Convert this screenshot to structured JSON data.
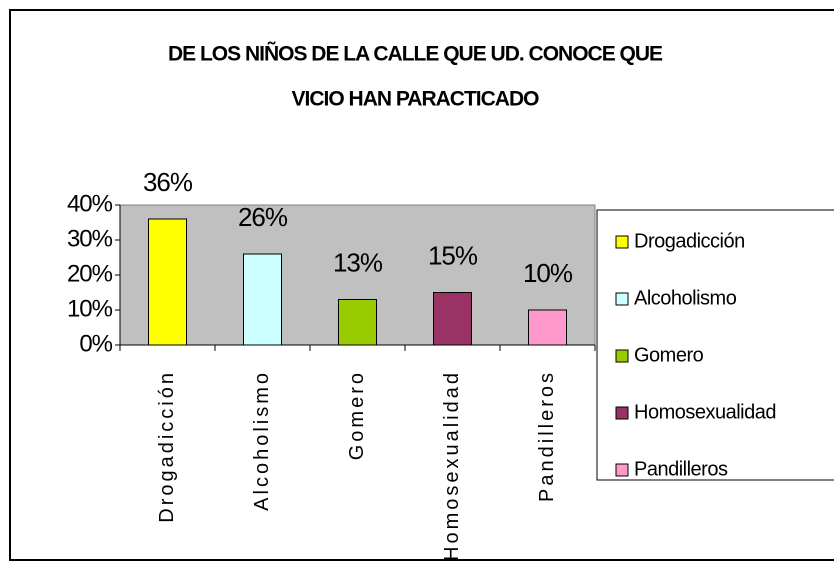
{
  "chart_data": {
    "type": "bar",
    "title": [
      "DE LOS NIÑOS DE LA CALLE QUE UD. CONOCE QUE",
      "VICIO HAN PARACTICADO"
    ],
    "categories": [
      "Drogadicción",
      "Alcoholismo",
      "Gomero",
      "Homosexualidad",
      "Pandilleros"
    ],
    "values": [
      36,
      26,
      13,
      15,
      10
    ],
    "value_labels": [
      "36%",
      "26%",
      "13%",
      "15%",
      "10%"
    ],
    "colors": [
      "#ffff00",
      "#ccffff",
      "#99cc00",
      "#993366",
      "#ff99cc"
    ],
    "ylim": [
      0,
      40
    ],
    "yticks": [
      {
        "value": 0,
        "label": "0%"
      },
      {
        "value": 10,
        "label": "10%"
      },
      {
        "value": 20,
        "label": "20%"
      },
      {
        "value": 30,
        "label": "30%"
      },
      {
        "value": 40,
        "label": "40%"
      }
    ],
    "legend": "right"
  }
}
